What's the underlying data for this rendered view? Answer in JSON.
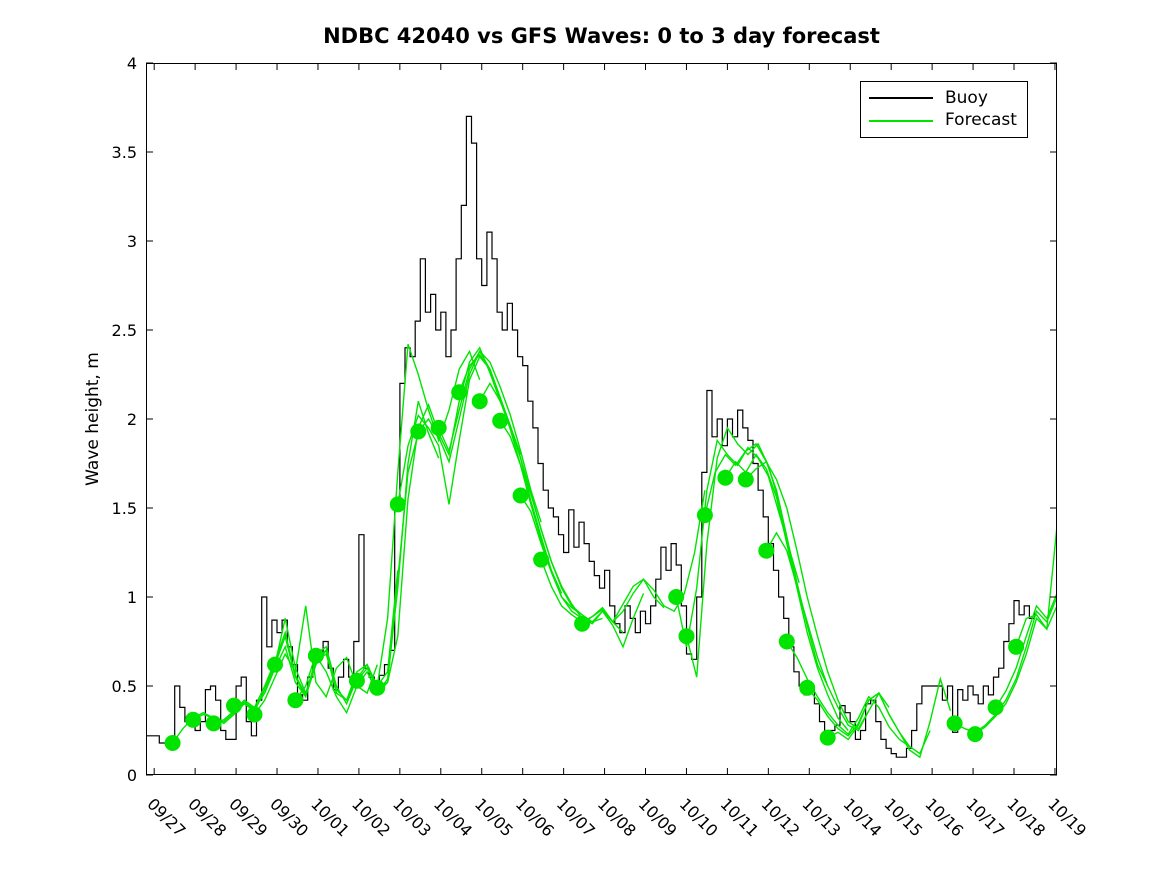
{
  "figure": {
    "background_color": "#ffffff"
  },
  "chart_data": {
    "type": "line",
    "title": "NDBC 42040 vs GFS Waves: 0 to 3 day forecast",
    "xlabel": "",
    "ylabel": "Wave height, m",
    "x_axis_unit": "days, day 0 = 09/27",
    "x_tick_labels": [
      "09/27",
      "09/28",
      "09/29",
      "09/30",
      "10/01",
      "10/02",
      "10/03",
      "10/04",
      "10/05",
      "10/06",
      "10/07",
      "10/08",
      "10/09",
      "10/10",
      "10/11",
      "10/12",
      "10/13",
      "10/14",
      "10/15",
      "10/16",
      "10/17",
      "10/18",
      "10/19"
    ],
    "y_tick_labels": [
      "0",
      "0.5",
      "1",
      "1.5",
      "2",
      "2.5",
      "3",
      "3.5",
      "4"
    ],
    "y_ticks": [
      0,
      0.5,
      1,
      1.5,
      2,
      2.5,
      3,
      3.5,
      4
    ],
    "ylim": [
      0,
      4
    ],
    "xlim_days": [
      -0.2,
      22.05
    ],
    "grid": false,
    "legend": {
      "position": "top-right",
      "entries": [
        {
          "label": "Buoy",
          "color": "#000000"
        },
        {
          "label": "Forecast",
          "color": "#00e400"
        }
      ]
    },
    "series": {
      "buoy": {
        "name": "Buoy",
        "color": "#000000",
        "style": "stairs",
        "x_start": -0.25,
        "dx": 0.125,
        "values": [
          0.22,
          0.22,
          0.22,
          0.18,
          0.18,
          0.2,
          0.5,
          0.38,
          0.3,
          0.28,
          0.25,
          0.3,
          0.48,
          0.5,
          0.42,
          0.25,
          0.2,
          0.2,
          0.5,
          0.55,
          0.3,
          0.22,
          0.42,
          1.0,
          0.72,
          0.87,
          0.8,
          0.87,
          0.72,
          0.62,
          0.45,
          0.42,
          0.55,
          0.68,
          0.68,
          0.75,
          0.6,
          0.48,
          0.55,
          0.65,
          0.55,
          0.75,
          1.35,
          0.6,
          0.55,
          0.52,
          0.56,
          0.62,
          0.7,
          1.55,
          2.2,
          2.4,
          2.35,
          2.55,
          2.9,
          2.6,
          2.7,
          2.5,
          2.6,
          2.35,
          2.5,
          2.9,
          3.2,
          3.7,
          3.55,
          2.9,
          2.75,
          3.05,
          2.9,
          2.6,
          2.5,
          2.65,
          2.5,
          2.35,
          2.3,
          2.1,
          1.95,
          1.75,
          1.6,
          1.5,
          1.45,
          1.35,
          1.25,
          1.49,
          1.28,
          1.42,
          1.3,
          1.2,
          1.12,
          1.05,
          1.15,
          0.95,
          0.85,
          0.8,
          0.95,
          0.88,
          0.8,
          0.92,
          0.85,
          0.95,
          1.1,
          1.28,
          1.15,
          1.3,
          1.18,
          0.95,
          0.68,
          0.65,
          1.0,
          1.7,
          2.16,
          1.9,
          2.0,
          1.85,
          2.0,
          1.9,
          2.05,
          1.95,
          1.88,
          1.75,
          1.6,
          1.45,
          1.3,
          1.15,
          1.0,
          0.88,
          0.72,
          0.58,
          0.5,
          0.45,
          0.5,
          0.4,
          0.3,
          0.22,
          0.25,
          0.28,
          0.39,
          0.35,
          0.3,
          0.2,
          0.25,
          0.4,
          0.42,
          0.3,
          0.2,
          0.15,
          0.12,
          0.1,
          0.1,
          0.15,
          0.25,
          0.4,
          0.5,
          0.5,
          0.5,
          0.5,
          0.42,
          0.5,
          0.24,
          0.48,
          0.42,
          0.5,
          0.45,
          0.4,
          0.5,
          0.45,
          0.55,
          0.6,
          0.75,
          0.85,
          0.98,
          0.9,
          0.95,
          0.88,
          0.92
        ]
      },
      "forecast": {
        "name": "Forecast",
        "color": "#00e400",
        "marker": "filled-circle-at-run-start",
        "dx": 0.25,
        "runs": [
          {
            "x0": 0.45,
            "y": [
              0.18,
              0.26,
              0.32,
              0.35,
              0.32,
              0.29,
              0.34,
              0.4,
              0.36,
              0.48,
              0.62,
              0.78,
              0.55
            ]
          },
          {
            "x0": 0.95,
            "y": [
              0.31,
              0.34,
              0.32,
              0.3,
              0.35,
              0.41,
              0.37,
              0.46,
              0.6,
              0.72,
              0.52,
              0.44,
              0.62
            ]
          },
          {
            "x0": 1.45,
            "y": [
              0.29,
              0.31,
              0.36,
              0.42,
              0.38,
              0.5,
              0.64,
              0.8,
              0.56,
              0.45,
              0.62,
              0.7,
              0.46
            ]
          },
          {
            "x0": 1.95,
            "y": [
              0.39,
              0.41,
              0.36,
              0.48,
              0.62,
              0.88,
              0.6,
              0.46,
              0.64,
              0.68,
              0.48,
              0.42,
              0.55
            ]
          },
          {
            "x0": 2.45,
            "y": [
              0.34,
              0.42,
              0.55,
              0.68,
              0.58,
              0.95,
              0.52,
              0.44,
              0.6,
              0.66,
              0.5,
              0.46,
              0.62
            ]
          },
          {
            "x0": 2.95,
            "y": [
              0.62,
              0.78,
              0.55,
              0.44,
              0.66,
              0.7,
              0.46,
              0.42,
              0.58,
              0.62,
              0.5,
              0.58,
              1.15
            ]
          },
          {
            "x0": 3.45,
            "y": [
              0.42,
              0.5,
              0.68,
              0.72,
              0.5,
              0.4,
              0.54,
              0.62,
              0.46,
              0.52,
              1.1,
              1.7,
              1.92
            ]
          },
          {
            "x0": 3.95,
            "y": [
              0.67,
              0.58,
              0.44,
              0.35,
              0.5,
              0.58,
              0.46,
              0.54,
              1.05,
              1.75,
              2.1,
              1.92,
              1.78
            ]
          },
          {
            "x0": 4.95,
            "y": [
              0.53,
              0.6,
              0.5,
              0.88,
              1.7,
              2.42,
              2.25,
              2.05,
              1.88,
              2.05,
              2.28,
              2.38,
              2.22
            ]
          },
          {
            "x0": 5.45,
            "y": [
              0.49,
              0.52,
              0.78,
              1.55,
              1.95,
              2.08,
              1.92,
              1.8,
              2.1,
              2.32,
              2.4,
              2.26,
              2.1
            ]
          },
          {
            "x0": 5.95,
            "y": [
              1.52,
              1.85,
              2.02,
              1.95,
              1.85,
              1.52,
              1.88,
              2.22,
              2.35,
              2.28,
              2.12,
              1.96,
              1.8
            ]
          },
          {
            "x0": 6.45,
            "y": [
              1.93,
              2.0,
              1.9,
              1.76,
              2.0,
              2.25,
              2.38,
              2.32,
              2.18,
              2.02,
              1.82,
              1.6,
              1.42
            ]
          },
          {
            "x0": 6.95,
            "y": [
              1.95,
              1.82,
              2.05,
              2.28,
              2.38,
              2.28,
              2.12,
              1.94,
              1.74,
              1.52,
              1.32,
              1.15,
              1.02
            ]
          },
          {
            "x0": 7.45,
            "y": [
              2.15,
              2.3,
              2.36,
              2.28,
              2.12,
              1.96,
              1.78,
              1.54,
              1.34,
              1.15,
              1.0,
              0.94,
              0.9
            ]
          },
          {
            "x0": 7.95,
            "y": [
              2.1,
              2.2,
              2.1,
              1.95,
              1.78,
              1.58,
              1.38,
              1.2,
              1.05,
              0.95,
              0.9,
              0.86,
              0.88
            ]
          },
          {
            "x0": 8.45,
            "y": [
              1.99,
              1.9,
              1.74,
              1.58,
              1.38,
              1.2,
              1.06,
              0.96,
              0.88,
              0.85,
              0.92,
              0.86,
              0.8
            ]
          },
          {
            "x0": 8.95,
            "y": [
              1.57,
              1.48,
              1.3,
              1.14,
              1.0,
              0.92,
              0.88,
              0.86,
              0.92,
              0.84,
              0.72,
              0.88,
              1.02
            ]
          },
          {
            "x0": 9.45,
            "y": [
              1.21,
              1.06,
              0.95,
              0.9,
              0.86,
              0.89,
              0.94,
              0.86,
              0.96,
              1.06,
              1.1,
              1.0,
              0.94
            ]
          },
          {
            "x0": 10.45,
            "y": [
              0.85,
              0.89,
              0.93,
              0.86,
              0.92,
              1.02,
              1.1,
              1.04,
              0.95,
              0.92,
              1.02,
              1.25,
              1.6
            ]
          },
          {
            "x0": 12.75,
            "y": [
              1.0,
              0.72,
              1.05,
              1.6,
              1.88,
              1.8,
              1.74,
              1.84,
              1.78,
              1.68,
              1.48,
              1.28,
              1.08
            ]
          },
          {
            "x0": 13.0,
            "y": [
              0.78,
              0.55,
              1.3,
              1.78,
              1.95,
              1.86,
              1.8,
              1.86,
              1.74,
              1.54,
              1.28,
              1.02,
              0.8
            ]
          },
          {
            "x0": 13.45,
            "y": [
              1.46,
              1.7,
              1.8,
              1.74,
              1.82,
              1.86,
              1.76,
              1.6,
              1.34,
              1.08,
              0.84,
              0.62,
              0.5
            ]
          },
          {
            "x0": 13.95,
            "y": [
              1.67,
              1.76,
              1.7,
              1.8,
              1.72,
              1.56,
              1.3,
              1.05,
              0.8,
              0.6,
              0.45,
              0.32,
              0.25
            ]
          },
          {
            "x0": 14.45,
            "y": [
              1.66,
              1.72,
              1.76,
              1.66,
              1.5,
              1.26,
              1.0,
              0.78,
              0.58,
              0.42,
              0.3,
              0.26,
              0.36
            ]
          },
          {
            "x0": 14.95,
            "y": [
              1.26,
              1.36,
              1.26,
              1.06,
              0.86,
              0.66,
              0.5,
              0.38,
              0.28,
              0.25,
              0.36,
              0.46,
              0.38
            ]
          },
          {
            "x0": 15.45,
            "y": [
              0.75,
              0.66,
              0.54,
              0.44,
              0.35,
              0.28,
              0.23,
              0.32,
              0.44,
              0.38,
              0.27,
              0.2,
              0.16
            ]
          },
          {
            "x0": 15.95,
            "y": [
              0.49,
              0.42,
              0.33,
              0.26,
              0.22,
              0.29,
              0.42,
              0.46,
              0.34,
              0.24,
              0.16,
              0.12,
              0.25
            ]
          },
          {
            "x0": 16.45,
            "y": [
              0.21,
              0.24,
              0.2,
              0.28,
              0.42,
              0.46,
              0.34,
              0.24,
              0.14,
              0.1,
              0.3,
              0.54,
              0.36
            ]
          },
          {
            "x0": 19.55,
            "y": [
              0.29,
              0.26,
              0.24,
              0.28,
              0.34,
              0.42,
              0.54,
              0.72,
              0.92,
              0.86,
              1.0,
              1.05,
              1.1
            ]
          },
          {
            "x0": 20.05,
            "y": [
              0.23,
              0.27,
              0.33,
              0.4,
              0.52,
              0.68,
              0.88,
              0.82,
              0.95,
              1.05,
              1.1,
              1.15,
              1.2
            ]
          },
          {
            "x0": 20.55,
            "y": [
              0.38,
              0.47,
              0.6,
              0.78,
              0.95,
              0.88,
              1.02,
              1.1,
              1.15,
              1.2,
              1.25,
              1.3,
              1.35
            ]
          },
          {
            "x0": 21.05,
            "y": [
              0.72,
              0.88,
              0.9,
              0.82,
              1.4,
              1.9,
              2.1,
              2.2,
              2.25,
              2.3,
              2.35,
              2.4,
              2.45
            ]
          }
        ]
      }
    }
  }
}
